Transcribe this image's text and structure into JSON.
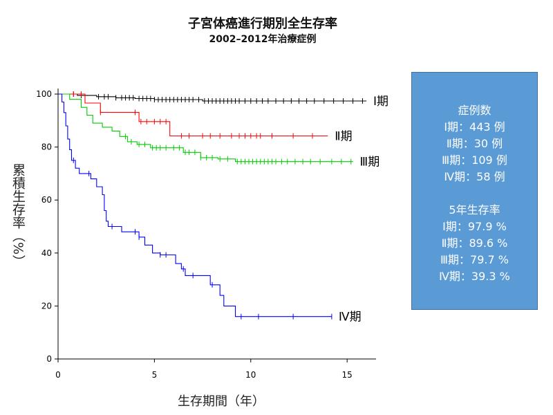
{
  "title": "子宮体癌進行期別全生存率",
  "subtitle": "2002–2012年治療症例",
  "info_box": {
    "cases_heading": "症例数",
    "cases": [
      "Ⅰ期：443 例",
      "Ⅱ期：30 例",
      "Ⅲ期：109 例",
      "Ⅳ期：58 例"
    ],
    "survival_heading": "5年生存率",
    "survival": [
      "Ⅰ期：97.9 %",
      "Ⅱ期：89.6 %",
      "Ⅲ期：79.7 %",
      "Ⅳ期：39.3 %"
    ]
  },
  "chart_data": {
    "type": "line",
    "title": "子宮体癌進行期別全生存率",
    "subtitle": "2002–2012年治療症例",
    "xlabel": "生存期間（年）",
    "ylabel": "累積生存率（%）",
    "xlim": [
      0,
      16.5
    ],
    "ylim": [
      0,
      100
    ],
    "xticks": [
      0,
      5,
      10,
      15
    ],
    "yticks": [
      0,
      20,
      40,
      60,
      80,
      100
    ],
    "grid": false,
    "legend": "curve end labels",
    "series": [
      {
        "name": "Ⅰ期",
        "color": "#000000",
        "steps": [
          [
            0,
            100
          ],
          [
            0.5,
            100
          ],
          [
            1,
            99.5
          ],
          [
            2,
            99
          ],
          [
            3,
            98.6
          ],
          [
            4,
            98.3
          ],
          [
            5,
            97.9
          ],
          [
            7.5,
            97.4
          ],
          [
            16,
            97.4
          ]
        ],
        "censor": [
          0.8,
          1.2,
          2.1,
          2.4,
          2.6,
          3,
          3.3,
          3.5,
          3.7,
          3.9,
          4.2,
          4.4,
          4.6,
          4.8,
          5,
          5.2,
          5.4,
          5.6,
          5.8,
          6,
          6.2,
          6.4,
          6.6,
          6.8,
          7,
          7.3,
          7.6,
          7.8,
          8,
          8.2,
          8.4,
          8.6,
          8.8,
          9,
          9.2,
          9.4,
          9.7,
          10,
          10.3,
          10.6,
          10.9,
          11.3,
          11.7,
          12.1,
          12.5,
          12.9,
          13.3,
          13.8,
          14.3,
          14.8,
          15.3,
          15.8
        ]
      },
      {
        "name": "Ⅱ期",
        "color": "#ff0000",
        "steps": [
          [
            0,
            100
          ],
          [
            1.4,
            96.6
          ],
          [
            2.2,
            93.1
          ],
          [
            4.2,
            89.6
          ],
          [
            5.8,
            84.2
          ],
          [
            14,
            84.2
          ]
        ],
        "censor": [
          0.8,
          1.2,
          2.2,
          4,
          4.3,
          4.6,
          5,
          5.3,
          5.6,
          6.4,
          6.8,
          7.5,
          7.9,
          8.4,
          9,
          9.4,
          9.7,
          10,
          10.3,
          10.5,
          11.1,
          12.2,
          13.2
        ]
      },
      {
        "name": "Ⅲ期",
        "color": "#00cc00",
        "steps": [
          [
            0,
            100
          ],
          [
            0.6,
            98
          ],
          [
            1.2,
            95
          ],
          [
            1.5,
            92
          ],
          [
            1.8,
            89
          ],
          [
            2.3,
            87.5
          ],
          [
            2.8,
            86
          ],
          [
            3.2,
            84
          ],
          [
            3.6,
            82
          ],
          [
            4.1,
            81
          ],
          [
            4.8,
            79.7
          ],
          [
            6.5,
            78
          ],
          [
            7.4,
            76
          ],
          [
            8.3,
            75.5
          ],
          [
            9.2,
            74.5
          ],
          [
            15.3,
            74.5
          ]
        ],
        "censor": [
          3.5,
          3.8,
          4.2,
          4.5,
          4.9,
          5.1,
          5.3,
          5.6,
          6,
          6.3,
          6.6,
          6.8,
          7.1,
          7.4,
          7.7,
          8,
          8.4,
          8.8,
          9.3,
          9.5,
          9.7,
          9.9,
          10.1,
          10.3,
          10.5,
          10.7,
          10.9,
          11.1,
          11.3,
          11.6,
          11.9,
          12.3,
          12.7,
          13.1,
          13.6,
          14.2,
          14.7,
          15.2
        ]
      },
      {
        "name": "Ⅳ期",
        "color": "#0000ff",
        "steps": [
          [
            0,
            100
          ],
          [
            0.2,
            97
          ],
          [
            0.3,
            93
          ],
          [
            0.4,
            88
          ],
          [
            0.5,
            83
          ],
          [
            0.6,
            79
          ],
          [
            0.7,
            75
          ],
          [
            0.9,
            72
          ],
          [
            1.1,
            70
          ],
          [
            1.7,
            68
          ],
          [
            2,
            65
          ],
          [
            2.3,
            62
          ],
          [
            2.4,
            56
          ],
          [
            2.5,
            52
          ],
          [
            2.6,
            50
          ],
          [
            3.3,
            48
          ],
          [
            4.2,
            46
          ],
          [
            4.5,
            43
          ],
          [
            4.9,
            40
          ],
          [
            5.3,
            39.3
          ],
          [
            6.1,
            36
          ],
          [
            6.4,
            34
          ],
          [
            6.6,
            31.5
          ],
          [
            7.9,
            28
          ],
          [
            8.4,
            24
          ],
          [
            8.6,
            20
          ],
          [
            9.2,
            16
          ],
          [
            14.2,
            16
          ]
        ],
        "censor": [
          0.8,
          1.6,
          2.8,
          4,
          4.2,
          5.3,
          5.6,
          6.5,
          7,
          8,
          9.5,
          10.4,
          12.2,
          14.2
        ]
      }
    ],
    "end_labels": [
      {
        "text": "Ⅰ期",
        "series": "Ⅰ期"
      },
      {
        "text": "Ⅱ期",
        "series": "Ⅱ期"
      },
      {
        "text": "Ⅲ期",
        "series": "Ⅲ期"
      },
      {
        "text": "Ⅳ期",
        "series": "Ⅳ期"
      }
    ]
  }
}
